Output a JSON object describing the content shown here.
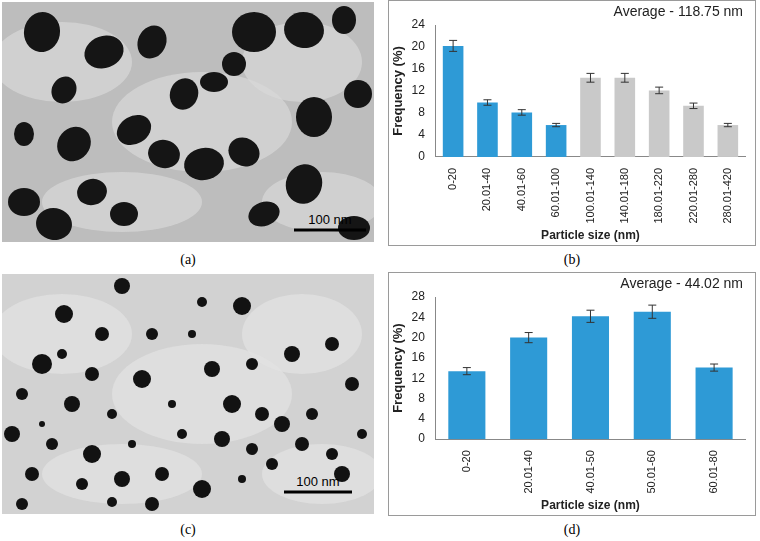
{
  "images": [
    {
      "caption": "(a)",
      "scale_bar": "100 nm"
    },
    {
      "caption": "(c)",
      "scale_bar": "100 nm"
    }
  ],
  "chart_data": [
    {
      "type": "bar",
      "caption": "(b)",
      "annotation": "Average - 118.75 nm",
      "x_label": "Particle size (nm)",
      "y_label": "Frequency (%)",
      "categories": [
        "0-20",
        "20.01-40",
        "40.01-60",
        "60.01-100",
        "100.01-140",
        "140.01-180",
        "180.01-220",
        "220.01-280",
        "280.01-420"
      ],
      "values": [
        20.2,
        9.9,
        8.1,
        5.8,
        14.4,
        14.4,
        12.1,
        9.3,
        5.8
      ],
      "errors": [
        1.0,
        0.5,
        0.5,
        0.3,
        0.8,
        0.8,
        0.6,
        0.5,
        0.3
      ],
      "colors": [
        "#2e9ad6",
        "#2e9ad6",
        "#2e9ad6",
        "#2e9ad6",
        "#c9c9c9",
        "#c9c9c9",
        "#c9c9c9",
        "#c9c9c9",
        "#c9c9c9"
      ],
      "ylim": [
        0,
        24
      ],
      "yticks": [
        0,
        4,
        8,
        12,
        16,
        20,
        24
      ],
      "grid": false
    },
    {
      "type": "bar",
      "caption": "(d)",
      "annotation": "Average - 44.02 nm",
      "x_label": "Particle size (nm)",
      "y_label": "Frequency (%)",
      "categories": [
        "0-20",
        "20.01-40",
        "40.01-50",
        "50.01-60",
        "60.01-80"
      ],
      "values": [
        13.4,
        20.0,
        24.2,
        25.1,
        14.1
      ],
      "errors": [
        0.7,
        1.0,
        1.2,
        1.3,
        0.7
      ],
      "color": "#2e9ad6",
      "ylim": [
        0,
        28
      ],
      "yticks": [
        0,
        4,
        8,
        12,
        16,
        20,
        24,
        28
      ],
      "grid": false
    }
  ]
}
